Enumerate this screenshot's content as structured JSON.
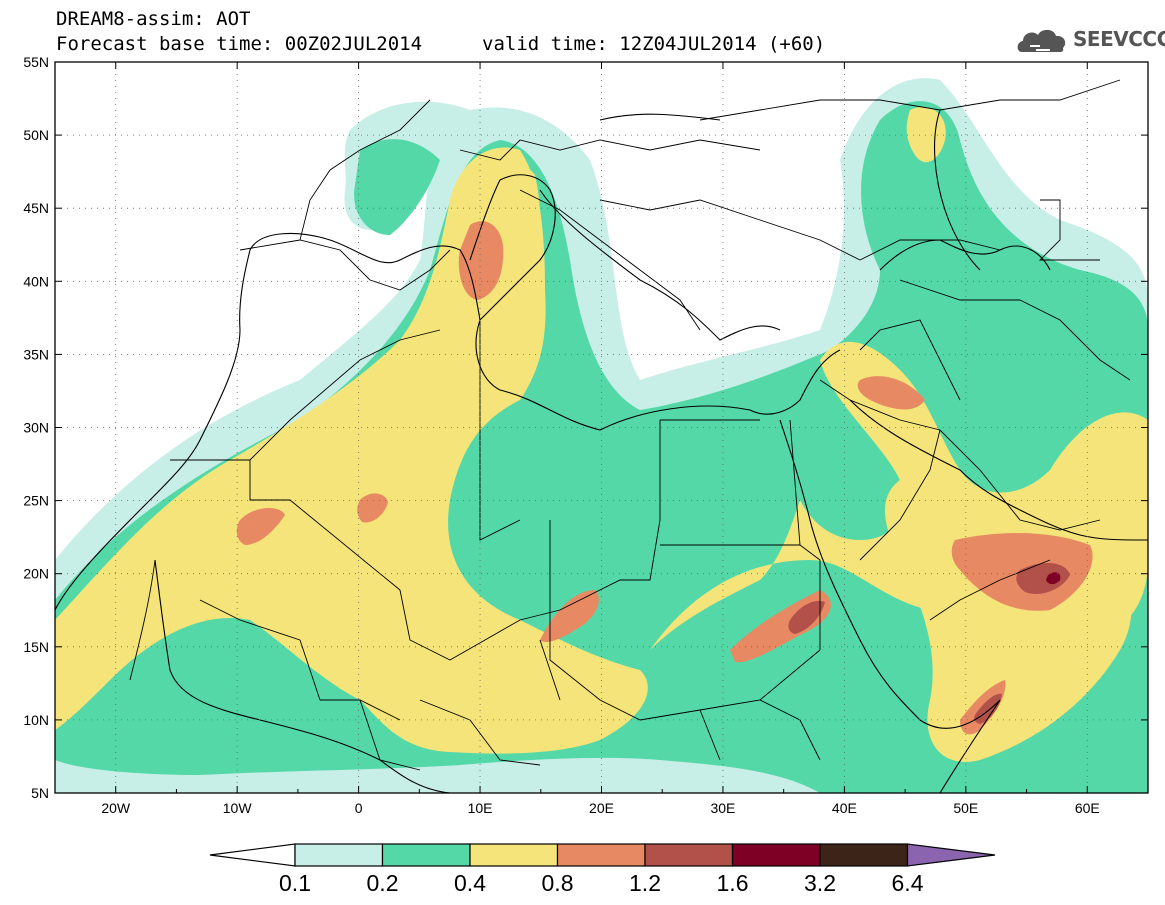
{
  "header": {
    "title": "DREAM8-assim: AOT",
    "base_time": "Forecast base time: 00Z02JUL2014",
    "valid_time": "valid time: 12Z04JUL2014 (+60)",
    "logo_text": "SEEVCCC",
    "logo_icon": "cloud-icon"
  },
  "map": {
    "lon_range": [
      -25,
      65
    ],
    "lat_range": [
      5,
      55
    ],
    "lat_labels": [
      "55N",
      "50N",
      "45N",
      "40N",
      "35N",
      "30N",
      "25N",
      "20N",
      "15N",
      "10N",
      "5N"
    ],
    "lon_labels": [
      "20W",
      "10W",
      "0",
      "10E",
      "20E",
      "30E",
      "40E",
      "50E",
      "60E"
    ],
    "ocean_color": "#ffffff",
    "border_color": "#000000"
  },
  "colorbar": {
    "labels": [
      "0.1",
      "0.2",
      "0.4",
      "0.8",
      "1.2",
      "1.6",
      "3.2",
      "6.4"
    ],
    "colors": [
      "#ffffff",
      "#c8eee8",
      "#55d8a8",
      "#f5e479",
      "#e78a63",
      "#b2504a",
      "#7e0024",
      "#3d2418",
      "#8b64b0"
    ]
  }
}
